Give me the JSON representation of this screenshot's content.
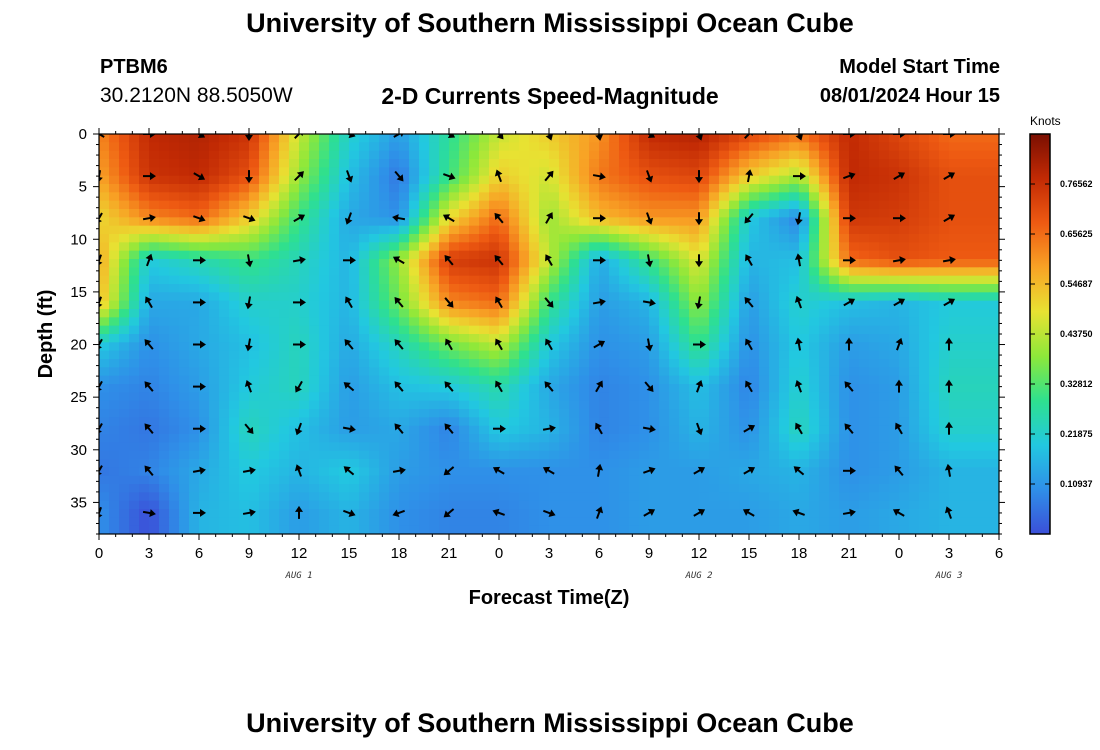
{
  "header": {
    "title": "University of Southern Mississippi Ocean Cube",
    "station_id": "PTBM6",
    "station_coords": "30.2120N  88.5050W",
    "plot_title": "2-D Currents Speed-Magnitude",
    "model_start_label": "Model Start Time",
    "model_start_value": "08/01/2024 Hour 15"
  },
  "footer": {
    "title": "University of Southern Mississippi Ocean Cube"
  },
  "chart_data": {
    "type": "heatmap",
    "title": "2-D Currents Speed-Magnitude",
    "xlabel": "Forecast Time(Z)",
    "ylabel": "Depth (ft)",
    "x_tick_labels": [
      "0",
      "3",
      "6",
      "9",
      "12",
      "15",
      "18",
      "21",
      "0",
      "3",
      "6",
      "9",
      "12",
      "15",
      "18",
      "21",
      "0",
      "3",
      "6"
    ],
    "y_tick_labels": [
      "0",
      "5",
      "10",
      "15",
      "20",
      "25",
      "30",
      "35"
    ],
    "y_ticks": [
      0,
      5,
      10,
      15,
      20,
      25,
      30,
      35
    ],
    "x_range_hours": [
      0,
      54
    ],
    "y_range_ft": [
      0,
      38
    ],
    "y_inverted": true,
    "date_labels": [
      {
        "text": "AUG 1",
        "hour": 12
      },
      {
        "text": "AUG 2",
        "hour": 36
      },
      {
        "text": "AUG 3",
        "hour": 51
      }
    ],
    "colorbar": {
      "units": "Knots",
      "min": 0,
      "max": 0.875,
      "ticks": [
        0.109375,
        0.21875,
        0.328125,
        0.4375,
        0.546875,
        0.65625,
        0.765625
      ],
      "tick_labels": [
        "0.10937",
        "0.21875",
        "0.32812",
        "0.43750",
        "0.54687",
        "0.65625",
        "0.76562"
      ],
      "colors": [
        "#3b4fd8",
        "#2f8fe8",
        "#22c8e0",
        "#2ee08f",
        "#8de83a",
        "#e8e232",
        "#f8a225",
        "#ee5a12",
        "#c22a04",
        "#7a0f02"
      ]
    },
    "vector_columns_hours": [
      0,
      3,
      6,
      9,
      12,
      15,
      18,
      21,
      24,
      27,
      30,
      33,
      36,
      39,
      42,
      45,
      48,
      51
    ],
    "vector_rows_ft": [
      0,
      4,
      8,
      12,
      16,
      20,
      24,
      28,
      32,
      36
    ],
    "speed_knots": [
      [
        0.62,
        0.78,
        0.8,
        0.76,
        0.45,
        0.22,
        0.12,
        0.28,
        0.45,
        0.52,
        0.6,
        0.78,
        0.8,
        0.72,
        0.65,
        0.78,
        0.72,
        0.66
      ],
      [
        0.58,
        0.76,
        0.78,
        0.7,
        0.4,
        0.18,
        0.06,
        0.3,
        0.52,
        0.46,
        0.64,
        0.7,
        0.72,
        0.52,
        0.42,
        0.78,
        0.76,
        0.7
      ],
      [
        0.5,
        0.62,
        0.66,
        0.52,
        0.3,
        0.14,
        0.1,
        0.5,
        0.66,
        0.4,
        0.55,
        0.6,
        0.6,
        0.2,
        0.08,
        0.75,
        0.74,
        0.7
      ],
      [
        0.58,
        0.2,
        0.25,
        0.3,
        0.24,
        0.16,
        0.4,
        0.74,
        0.76,
        0.44,
        0.14,
        0.3,
        0.48,
        0.16,
        0.18,
        0.66,
        0.7,
        0.68
      ],
      [
        0.55,
        0.14,
        0.14,
        0.22,
        0.22,
        0.16,
        0.36,
        0.62,
        0.66,
        0.3,
        0.12,
        0.16,
        0.4,
        0.12,
        0.22,
        0.18,
        0.16,
        0.2
      ],
      [
        0.2,
        0.1,
        0.14,
        0.18,
        0.24,
        0.14,
        0.24,
        0.36,
        0.44,
        0.2,
        0.1,
        0.12,
        0.3,
        0.1,
        0.2,
        0.12,
        0.14,
        0.22
      ],
      [
        0.1,
        0.08,
        0.12,
        0.2,
        0.24,
        0.12,
        0.18,
        0.2,
        0.26,
        0.14,
        0.08,
        0.1,
        0.18,
        0.08,
        0.22,
        0.1,
        0.12,
        0.24
      ],
      [
        0.08,
        0.06,
        0.1,
        0.24,
        0.18,
        0.12,
        0.14,
        0.08,
        0.2,
        0.16,
        0.08,
        0.1,
        0.16,
        0.1,
        0.24,
        0.1,
        0.12,
        0.22
      ],
      [
        0.06,
        0.08,
        0.14,
        0.2,
        0.16,
        0.2,
        0.12,
        0.1,
        0.1,
        0.1,
        0.1,
        0.12,
        0.12,
        0.14,
        0.16,
        0.1,
        0.12,
        0.16
      ],
      [
        0.1,
        0.0,
        0.16,
        0.18,
        0.12,
        0.16,
        0.1,
        0.08,
        0.08,
        0.1,
        0.1,
        0.12,
        0.12,
        0.12,
        0.14,
        0.12,
        0.14,
        0.16
      ]
    ],
    "direction_deg": [
      [
        300,
        90,
        120,
        180,
        45,
        110,
        60,
        120,
        140,
        160,
        170,
        120,
        160,
        45,
        160,
        90,
        90,
        90
      ],
      [
        190,
        90,
        120,
        180,
        45,
        160,
        140,
        110,
        340,
        40,
        100,
        160,
        180,
        10,
        90,
        70,
        60,
        60
      ],
      [
        210,
        80,
        110,
        110,
        60,
        200,
        280,
        300,
        320,
        30,
        90,
        160,
        180,
        220,
        190,
        90,
        90,
        60
      ],
      [
        200,
        20,
        90,
        170,
        80,
        90,
        300,
        320,
        320,
        330,
        90,
        170,
        180,
        330,
        350,
        90,
        80,
        80
      ],
      [
        200,
        330,
        90,
        190,
        90,
        330,
        320,
        140,
        330,
        140,
        80,
        100,
        190,
        320,
        340,
        60,
        60,
        60
      ],
      [
        210,
        320,
        90,
        190,
        90,
        320,
        320,
        330,
        330,
        330,
        60,
        170,
        90,
        330,
        350,
        0,
        20,
        0
      ],
      [
        210,
        320,
        90,
        340,
        210,
        310,
        320,
        320,
        330,
        320,
        30,
        140,
        20,
        330,
        340,
        320,
        0,
        0
      ],
      [
        210,
        320,
        90,
        140,
        200,
        100,
        320,
        320,
        90,
        80,
        330,
        100,
        160,
        60,
        330,
        320,
        330,
        0
      ],
      [
        210,
        320,
        80,
        80,
        340,
        310,
        80,
        230,
        300,
        300,
        10,
        70,
        60,
        60,
        310,
        90,
        320,
        350
      ],
      [
        200,
        100,
        90,
        80,
        0,
        110,
        250,
        230,
        290,
        110,
        20,
        60,
        60,
        300,
        290,
        80,
        300,
        340
      ]
    ]
  }
}
